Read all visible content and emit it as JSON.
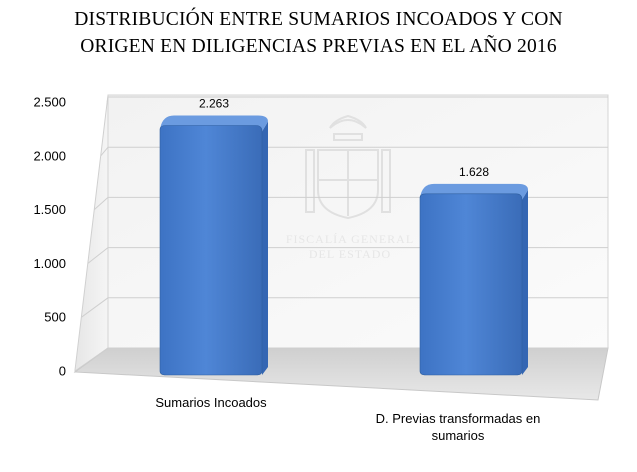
{
  "title": {
    "line1": "DISTRIBUCIÓN ENTRE SUMARIOS INCOADOS Y CON",
    "line2": "ORIGEN EN DILIGENCIAS PREVIAS EN EL AÑO 2016"
  },
  "watermark": {
    "line1": "FISCALÍA GENERAL",
    "line2": "DEL ESTADO"
  },
  "colors": {
    "bar": "#4a7fcf",
    "bar_dark": "#3466b3",
    "bar_top": "#6b9be0"
  },
  "chart_data": {
    "type": "bar",
    "title": "DISTRIBUCIÓN ENTRE SUMARIOS INCOADOS Y CON ORIGEN EN DILIGENCIAS PREVIAS EN EL AÑO 2016",
    "categories": [
      "Sumarios Incoados",
      "D. Previas transformadas en sumarios"
    ],
    "category_lines": [
      [
        "Sumarios Incoados"
      ],
      [
        "D. Previas transformadas en",
        "sumarios"
      ]
    ],
    "values": [
      2263,
      1628
    ],
    "value_labels": [
      "2.263",
      "1.628"
    ],
    "ylim": [
      0,
      2500
    ],
    "yticks": [
      0,
      500,
      1000,
      1500,
      2000,
      2500
    ],
    "ytick_labels": [
      "0",
      "500",
      "1.000",
      "1.500",
      "2.000",
      "2.500"
    ],
    "grid": true,
    "legend": "none",
    "xlabel": "",
    "ylabel": ""
  }
}
